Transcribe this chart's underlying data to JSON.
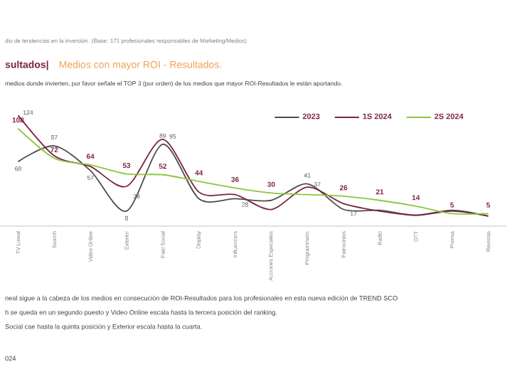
{
  "chart_data": {
    "type": "line",
    "title": "sultados|",
    "subtitle": "Medios con mayor ROI - Resultados.",
    "annotations": [
      "dio de tendencias en la inversión. (Base: 171 profesionales responsables de Marketing/Medios)",
      "medios donde invierten, por favor señale el TOP 3 (por orden) de los medios que mayor ROI-Resultados le están aportando.",
      "neal sigue a la cabeza de los medios en consecución de ROI-Resultados para los profesionales en esta nueva edición de TREND SCO",
      "h se queda en un segundo puesto y Video Online escala hasta la tercera posición del ranking.",
      "Social cae hasta la quinta posición y Exterior escala hasta la cuarta.",
      "024"
    ],
    "categories": [
      "TV Lineal",
      "Search",
      "Video Online",
      "Exterior",
      "Paid Social",
      "Display",
      "Influencers",
      "Acciones Especiales",
      "Programmatic",
      "Patrocinios",
      "Radio",
      "OTT",
      "Prensa",
      "Revistas"
    ],
    "series": [
      {
        "name": "2023",
        "color": "#4d4d4d",
        "values": [
          68,
          87,
          57,
          8,
          89,
          23,
          23,
          21,
          41,
          10,
          9,
          3,
          9,
          2
        ],
        "value_labels": [
          "68",
          "87",
          "57",
          "8",
          "89",
          null,
          null,
          null,
          "41",
          null,
          null,
          null,
          null,
          null
        ]
      },
      {
        "name": "1S 2024",
        "color": "#7b2344",
        "values": [
          124,
          75,
          62,
          38,
          95,
          31,
          28,
          10,
          37,
          17,
          8,
          3,
          8,
          2
        ],
        "value_labels": [
          "124",
          null,
          null,
          "38",
          "95",
          null,
          "28",
          null,
          "37",
          "17",
          null,
          null,
          null,
          null
        ]
      },
      {
        "name": "2S 2024",
        "color": "#8cc63f",
        "values": [
          108,
          72,
          64,
          53,
          52,
          44,
          36,
          30,
          28,
          26,
          21,
          14,
          5,
          5
        ],
        "value_labels": [
          "108",
          "72",
          "64",
          "53",
          "52",
          "44",
          "36",
          "30",
          null,
          "26",
          "21",
          "14",
          "5",
          "5"
        ]
      }
    ],
    "legend": "top right",
    "line_style": "solid",
    "marker": "none"
  }
}
